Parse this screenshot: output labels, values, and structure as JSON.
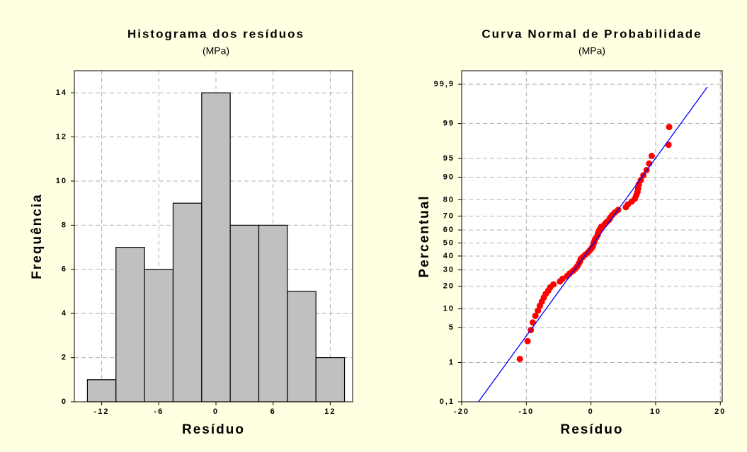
{
  "chart_data": [
    {
      "type": "histogram",
      "title": "Histograma dos resíduos",
      "subtitle": "(MPa)",
      "x_label": "Resíduo",
      "y_label": "Frequência",
      "bins": [
        -13.5,
        -10.5,
        -7.5,
        -4.5,
        -1.5,
        1.5,
        4.5,
        7.5,
        10.5,
        13.5
      ],
      "values": [
        1,
        7,
        6,
        9,
        14,
        8,
        8,
        5,
        2
      ],
      "color": "#c0c0c0",
      "xlim": [
        -14.87,
        14.35
      ],
      "xticks": [
        -12,
        -6,
        0,
        6,
        12
      ],
      "ylim": [
        0,
        15
      ],
      "yticks": [
        0,
        2,
        4,
        6,
        8,
        10,
        12,
        14
      ],
      "grid": true
    },
    {
      "type": "probability",
      "title": "Curva Normal de Probabilidade",
      "subtitle": "(MPa)",
      "x_label": "Resíduo",
      "y_label": "Percentual",
      "series": [
        {
          "color": "#ff0000",
          "x": [
            -11.0,
            -9.8,
            -9.3,
            -9.0,
            -8.6,
            -8.2,
            -7.9,
            -7.6,
            -7.3,
            -7.0,
            -6.6,
            -6.3,
            -5.8,
            -4.8,
            -4.4,
            -3.7,
            -3.3,
            -2.8,
            -2.4,
            -2.1,
            -1.9,
            -1.7,
            -1.6,
            -1.3,
            -0.9,
            -0.5,
            -0.2,
            0.1,
            0.3,
            0.4,
            0.5,
            0.6,
            0.8,
            1.0,
            1.1,
            1.2,
            1.4,
            1.6,
            2.1,
            2.4,
            2.8,
            3.0,
            3.3,
            3.7,
            4.2,
            5.4,
            5.7,
            6.3,
            6.8,
            7.0,
            7.2,
            7.3,
            7.4,
            7.7,
            8.1,
            8.6,
            9.0,
            9.4,
            12.0,
            12.1
          ],
          "values": [
            1.2,
            2.8,
            4.5,
            6.1,
            7.8,
            9.4,
            11.1,
            12.7,
            14.4,
            16.1,
            17.7,
            19.4,
            21.0,
            22.7,
            24.3,
            26.0,
            27.6,
            29.3,
            31.0,
            32.6,
            34.3,
            35.9,
            37.6,
            39.2,
            40.9,
            42.6,
            44.2,
            45.9,
            47.5,
            49.2,
            50.8,
            52.5,
            54.1,
            55.8,
            57.5,
            59.1,
            60.8,
            62.4,
            64.1,
            65.7,
            67.4,
            69.0,
            70.7,
            72.4,
            74.0,
            75.7,
            77.3,
            79.0,
            80.6,
            82.3,
            83.9,
            85.6,
            87.3,
            88.9,
            90.6,
            92.2,
            93.9,
            95.5,
            97.2,
            98.8
          ]
        },
        {
          "color": "#0000ff",
          "line": true,
          "x": [
            -17.4,
            18
          ],
          "values": [
            0.1,
            99.88
          ]
        }
      ],
      "xlim": [
        -20,
        20.3
      ],
      "xticks": [
        -20,
        -10,
        0,
        10,
        20
      ],
      "ylim": [
        0.1,
        99.96
      ],
      "y_scale": "probability",
      "yticks": [
        {
          "value": 0.1,
          "label": "0,1"
        },
        1,
        5,
        10,
        20,
        30,
        40,
        50,
        60,
        70,
        80,
        90,
        95,
        99,
        {
          "value": 99.9,
          "label": "99,9"
        }
      ],
      "grid": true
    }
  ]
}
